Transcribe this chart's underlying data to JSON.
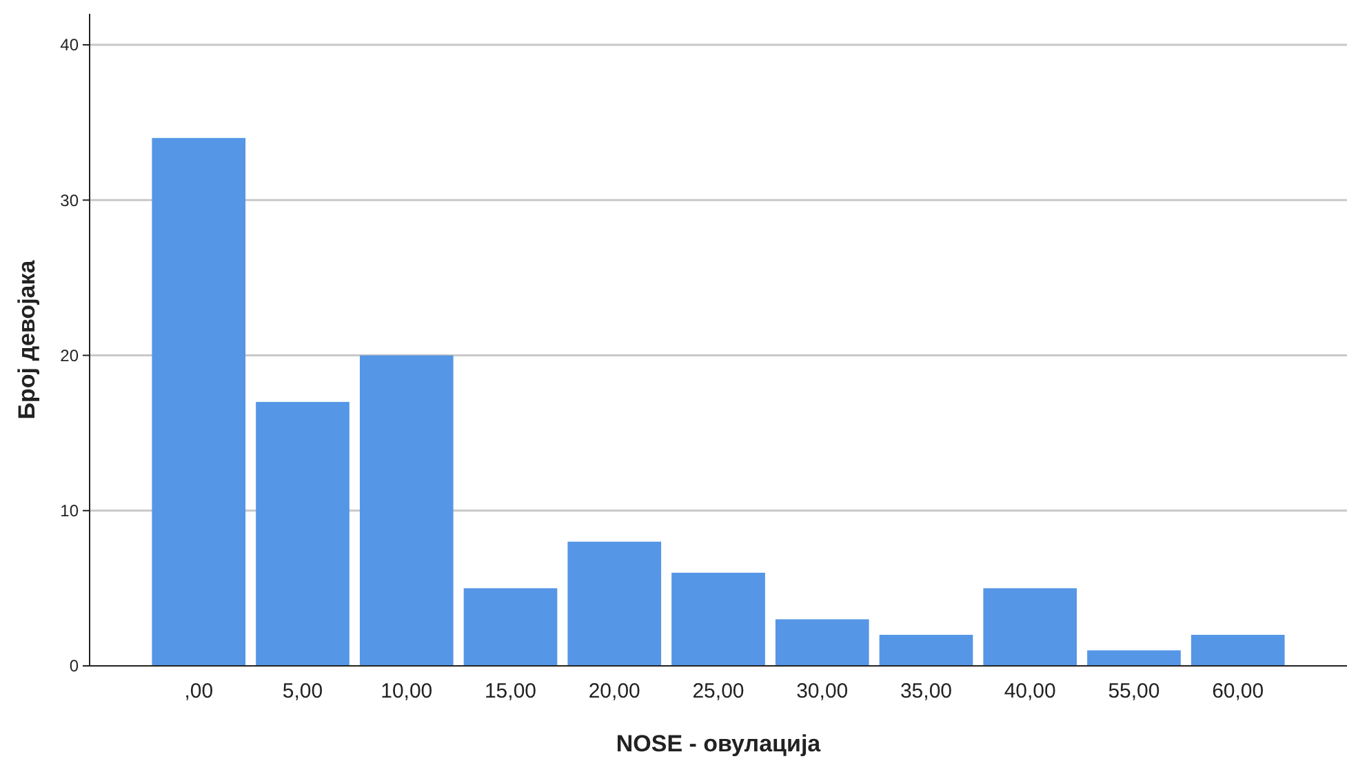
{
  "chart_data": {
    "type": "bar",
    "xlabel": "NOSE - овулација",
    "ylabel": "Број девојака",
    "categories": [
      ",00",
      "5,00",
      "10,00",
      "15,00",
      "20,00",
      "25,00",
      "30,00",
      "35,00",
      "40,00",
      "55,00",
      "60,00"
    ],
    "values": [
      34,
      17,
      20,
      5,
      8,
      6,
      3,
      2,
      5,
      1,
      2
    ],
    "color": "#5596e6",
    "ylim": [
      0,
      42
    ],
    "yticks": [
      0,
      10,
      20,
      30,
      40
    ],
    "grid": "y"
  }
}
